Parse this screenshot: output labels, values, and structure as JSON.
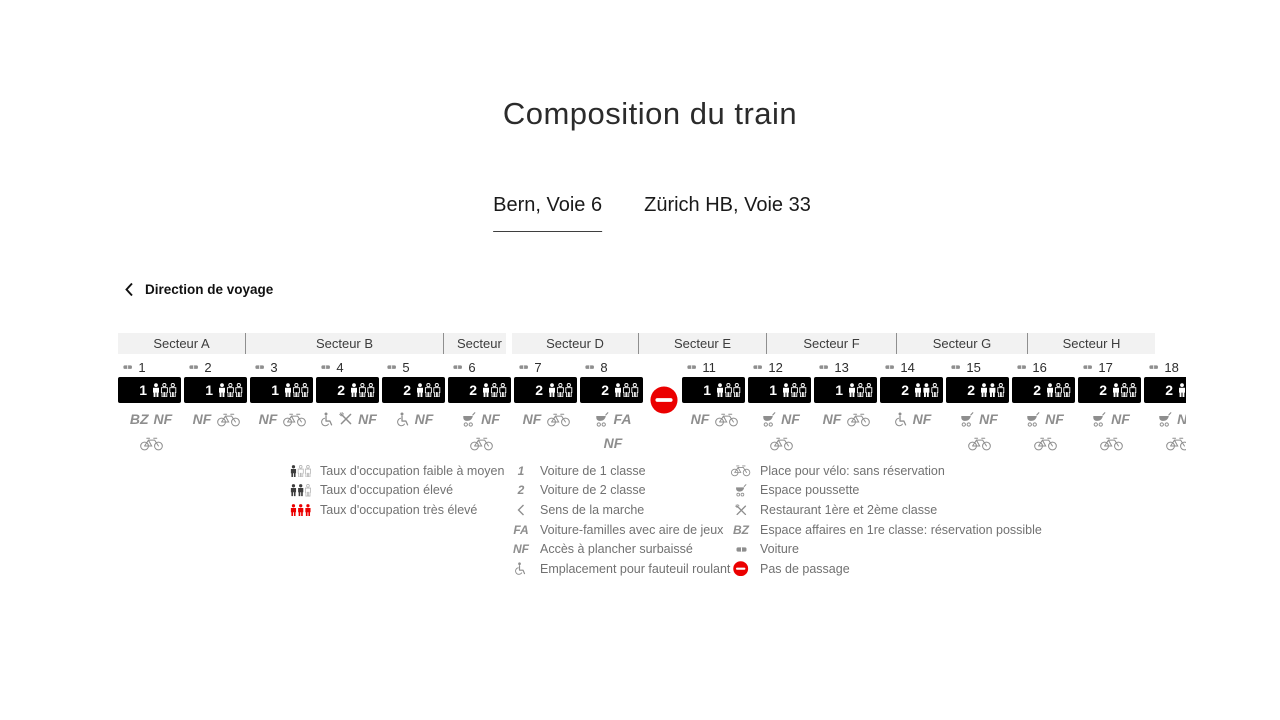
{
  "title": "Composition du train",
  "tabs": [
    {
      "id": "bern",
      "label": "Bern, Voie 6",
      "active": true
    },
    {
      "id": "zuerich",
      "label": "Zürich HB, Voie 33",
      "active": false
    }
  ],
  "direction": {
    "label": "Direction de voyage"
  },
  "sectors": [
    {
      "label": "Secteur A"
    },
    {
      "label": "Secteur B"
    },
    {
      "label": "Secteur C"
    },
    {
      "label": "Secteur D"
    },
    {
      "label": "Secteur E"
    },
    {
      "label": "Secteur F"
    },
    {
      "label": "Secteur G"
    },
    {
      "label": "Secteur H"
    }
  ],
  "cars": [
    {
      "number": "1",
      "class": "1",
      "occupancy": "low",
      "row1": [
        "BZ",
        "NF"
      ],
      "row2": [
        "bike"
      ]
    },
    {
      "number": "2",
      "class": "1",
      "occupancy": "low",
      "row1": [
        "NF",
        "bike"
      ],
      "row2": []
    },
    {
      "number": "3",
      "class": "1",
      "occupancy": "low",
      "row1": [
        "NF",
        "bike"
      ],
      "row2": []
    },
    {
      "number": "4",
      "class": "2",
      "occupancy": "low",
      "row1": [
        "wheelchair",
        "restaurant",
        "NF"
      ],
      "row2": []
    },
    {
      "number": "5",
      "class": "2",
      "occupancy": "low",
      "row1": [
        "wheelchair",
        "NF"
      ],
      "row2": []
    },
    {
      "number": "6",
      "class": "2",
      "occupancy": "low",
      "row1": [
        "stroller",
        "NF"
      ],
      "row2": [
        "bike"
      ]
    },
    {
      "number": "7",
      "class": "2",
      "occupancy": "low",
      "row1": [
        "NF",
        "bike"
      ],
      "row2": []
    },
    {
      "number": "8",
      "class": "2",
      "occupancy": "low",
      "row1": [
        "stroller",
        "FA"
      ],
      "row2": [
        "NF"
      ],
      "no_passage_after": true
    },
    {
      "number": "11",
      "class": "1",
      "occupancy": "low",
      "row1": [
        "NF",
        "bike"
      ],
      "row2": []
    },
    {
      "number": "12",
      "class": "1",
      "occupancy": "low",
      "row1": [
        "stroller",
        "NF"
      ],
      "row2": [
        "bike"
      ]
    },
    {
      "number": "13",
      "class": "1",
      "occupancy": "low",
      "row1": [
        "NF",
        "bike"
      ],
      "row2": []
    },
    {
      "number": "14",
      "class": "2",
      "occupancy": "high",
      "row1": [
        "wheelchair",
        "NF"
      ],
      "row2": []
    },
    {
      "number": "15",
      "class": "2",
      "occupancy": "high",
      "row1": [
        "stroller",
        "NF"
      ],
      "row2": [
        "bike"
      ]
    },
    {
      "number": "16",
      "class": "2",
      "occupancy": "low",
      "row1": [
        "stroller",
        "NF"
      ],
      "row2": [
        "bike"
      ]
    },
    {
      "number": "17",
      "class": "2",
      "occupancy": "low",
      "row1": [
        "stroller",
        "NF"
      ],
      "row2": [
        "bike"
      ]
    },
    {
      "number": "18",
      "class": "2",
      "occupancy": "low",
      "row1": [
        "stroller",
        "NF"
      ],
      "row2": [
        "bike"
      ]
    }
  ],
  "legend": {
    "col1": [
      {
        "icon": "occupancy-low",
        "label": "Taux d'occupation faible à moyen"
      },
      {
        "icon": "occupancy-high",
        "label": "Taux d'occupation élevé"
      },
      {
        "icon": "occupancy-very-high",
        "label": "Taux d'occupation très élevé"
      }
    ],
    "col2": [
      {
        "icon": "class-1",
        "label": "Voiture de 1 classe"
      },
      {
        "icon": "class-2",
        "label": "Voiture de 2 classe"
      },
      {
        "icon": "direction",
        "label": "Sens de la marche"
      },
      {
        "icon": "FA",
        "label": "Voiture-familles avec aire de jeux"
      },
      {
        "icon": "NF",
        "label": "Accès à plancher surbaissé"
      },
      {
        "icon": "wheelchair",
        "label": "Emplacement pour fauteuil roulant"
      }
    ],
    "col3": [
      {
        "icon": "bike",
        "label": "Place pour vélo: sans réservation"
      },
      {
        "icon": "stroller",
        "label": "Espace poussette"
      },
      {
        "icon": "restaurant",
        "label": "Restaurant 1ère et 2ème classe"
      },
      {
        "icon": "BZ",
        "label": "Espace affaires en 1re classe: réservation possible"
      },
      {
        "icon": "wagon",
        "label": "Voiture"
      },
      {
        "icon": "no-passage",
        "label": "Pas de passage"
      }
    ]
  },
  "colors": {
    "accent_red": "#eb0000",
    "car_block": "#000000",
    "icon_gray": "#8e8e8e",
    "sector_band": "#f2f2f2"
  }
}
